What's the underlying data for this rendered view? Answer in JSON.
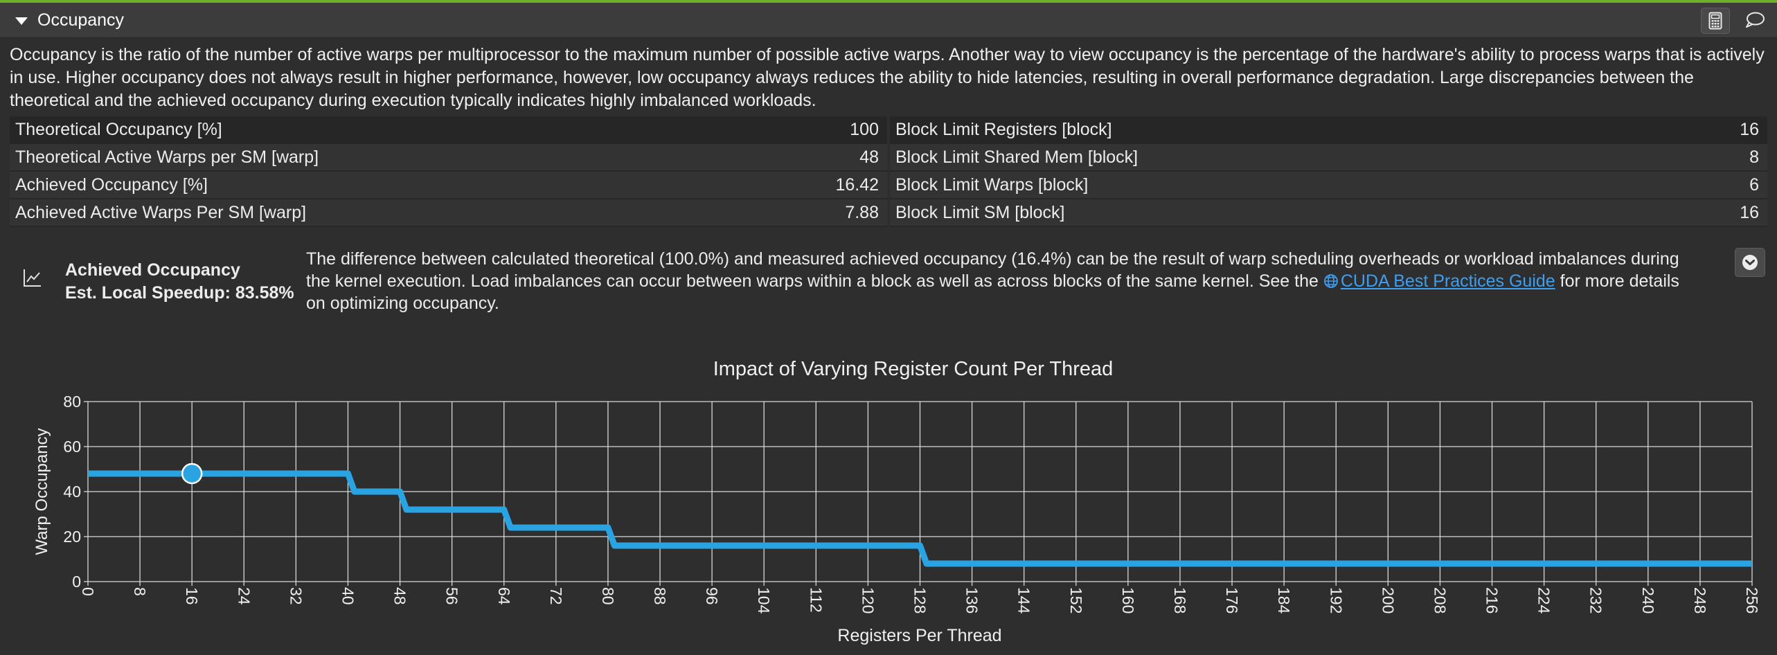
{
  "section": {
    "title": "Occupancy",
    "description": "Occupancy is the ratio of the number of active warps per multiprocessor to the maximum number of possible active warps. Another way to view occupancy is the percentage of the hardware's ability to process warps that is actively in use. Higher occupancy does not always result in higher performance, however, low occupancy always reduces the ability to hide latencies, resulting in overall performance degradation. Large discrepancies between the theoretical and the achieved occupancy during execution typically indicates highly imbalanced workloads."
  },
  "icons": {
    "collapse": "caret-down-icon",
    "calculator": "calculator-icon",
    "comment": "comment-icon",
    "rule": "line-chart-icon",
    "link": "globe-icon",
    "expand": "chevron-circle-down-icon"
  },
  "metrics": {
    "left": [
      {
        "label": "Theoretical Occupancy [%]",
        "value": "100"
      },
      {
        "label": "Theoretical Active Warps per SM [warp]",
        "value": "48"
      },
      {
        "label": "Achieved Occupancy [%]",
        "value": "16.42"
      },
      {
        "label": "Achieved Active Warps Per SM [warp]",
        "value": "7.88"
      }
    ],
    "right": [
      {
        "label": "Block Limit Registers [block]",
        "value": "16"
      },
      {
        "label": "Block Limit Shared Mem [block]",
        "value": "8"
      },
      {
        "label": "Block Limit Warps [block]",
        "value": "6"
      },
      {
        "label": "Block Limit SM [block]",
        "value": "16"
      }
    ]
  },
  "rule": {
    "name": "Achieved Occupancy",
    "speedup": "Est. Local Speedup: 83.58%",
    "text_before": "The difference between calculated theoretical (100.0%) and measured achieved occupancy (16.4%) can be the result of warp scheduling overheads or workload imbalances during the kernel execution. Load imbalances can occur between warps within a block as well as across blocks of the same kernel. See the ",
    "link_text": "CUDA Best Practices Guide",
    "text_after": " for more details on optimizing occupancy."
  },
  "colors": {
    "accent_bar": "#6fae29",
    "series": "#29a3e2",
    "link": "#3d9ff2",
    "background": "#2e2e2e"
  },
  "chart_data": {
    "type": "line",
    "title": "Impact of Varying Register Count Per Thread",
    "xlabel": "Registers Per Thread",
    "ylabel": "Warp Occupancy",
    "xlim": [
      0,
      256
    ],
    "ylim": [
      0,
      80
    ],
    "xticks": [
      0,
      8,
      16,
      24,
      32,
      40,
      48,
      56,
      64,
      72,
      80,
      88,
      96,
      104,
      112,
      120,
      128,
      136,
      144,
      152,
      160,
      168,
      176,
      184,
      192,
      200,
      208,
      216,
      224,
      232,
      240,
      248,
      256
    ],
    "yticks": [
      0,
      20,
      40,
      60,
      80
    ],
    "grid": true,
    "series": [
      {
        "values": [
          [
            0,
            48
          ],
          [
            40,
            48
          ],
          [
            41,
            40
          ],
          [
            48,
            40
          ],
          [
            49,
            32
          ],
          [
            64,
            32
          ],
          [
            65,
            24
          ],
          [
            80,
            24
          ],
          [
            81,
            16
          ],
          [
            128,
            16
          ],
          [
            129,
            8
          ],
          [
            256,
            8
          ]
        ]
      }
    ],
    "highlight": {
      "x": 16,
      "y": 48
    }
  }
}
